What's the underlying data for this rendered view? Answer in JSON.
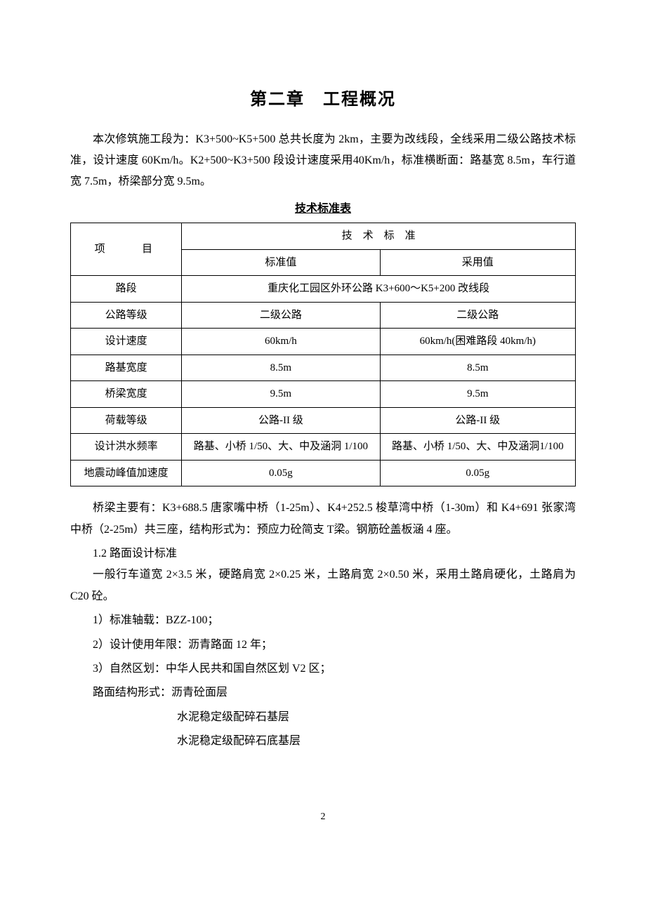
{
  "title": "第二章　工程概况",
  "intro": "本次修筑施工段为：K3+500~K5+500 总共长度为 2km，主要为改线段，全线采用二级公路技术标准，设计速度 60Km/h。K2+500~K3+500 段设计速度采用40Km/h，标准横断面：路基宽 8.5m，车行道宽 7.5m，桥梁部分宽 9.5m。",
  "table_title": "技术标准表",
  "table": {
    "header_item": "项　　目",
    "header_tech": "技　术　标　准",
    "header_std": "标准值",
    "header_use": "采用值",
    "rows": [
      {
        "label": "路段",
        "span": true,
        "value": "重庆化工园区外环公路 K3+600～K5+200 改线段"
      },
      {
        "label": "公路等级",
        "std": "二级公路",
        "use": "二级公路"
      },
      {
        "label": "设计速度",
        "std": "60km/h",
        "use": "60km/h(困难路段 40km/h)"
      },
      {
        "label": "路基宽度",
        "std": "8.5m",
        "use": "8.5m"
      },
      {
        "label": "桥梁宽度",
        "std": "9.5m",
        "use": "9.5m"
      },
      {
        "label": "荷载等级",
        "std": "公路-II 级",
        "use": "公路-II 级"
      },
      {
        "label": "设计洪水频率",
        "std": "路基、小桥 1/50、大、中及涵洞 1/100",
        "use": "路基、小桥 1/50、大、中及涵洞1/100"
      },
      {
        "label": "地震动峰值加速度",
        "std": "0.05g",
        "use": "0.05g"
      }
    ]
  },
  "bridge_para": "桥梁主要有：K3+688.5 唐家嘴中桥（1-25m）、K4+252.5 梭草湾中桥（1-30m）和 K4+691 张家湾中桥（2-25m）共三座，结构形式为：预应力砼简支 T梁。钢筋砼盖板涵 4 座。",
  "design_head": "1.2 路面设计标准",
  "design_intro": "一般行车道宽 2×3.5 米，硬路肩宽 2×0.25 米，土路肩宽 2×0.50 米，采用土路肩硬化，土路肩为 C20 砼。",
  "items": [
    "1）标准轴载：BZZ-100；",
    "2）设计使用年限：沥青路面 12 年；",
    "3）自然区划：中华人民共和国自然区划 V2 区；"
  ],
  "structure_head": "路面结构形式：沥青砼面层",
  "structure_lines": [
    "水泥稳定级配碎石基层",
    "水泥稳定级配碎石底基层"
  ],
  "page_number": "2"
}
